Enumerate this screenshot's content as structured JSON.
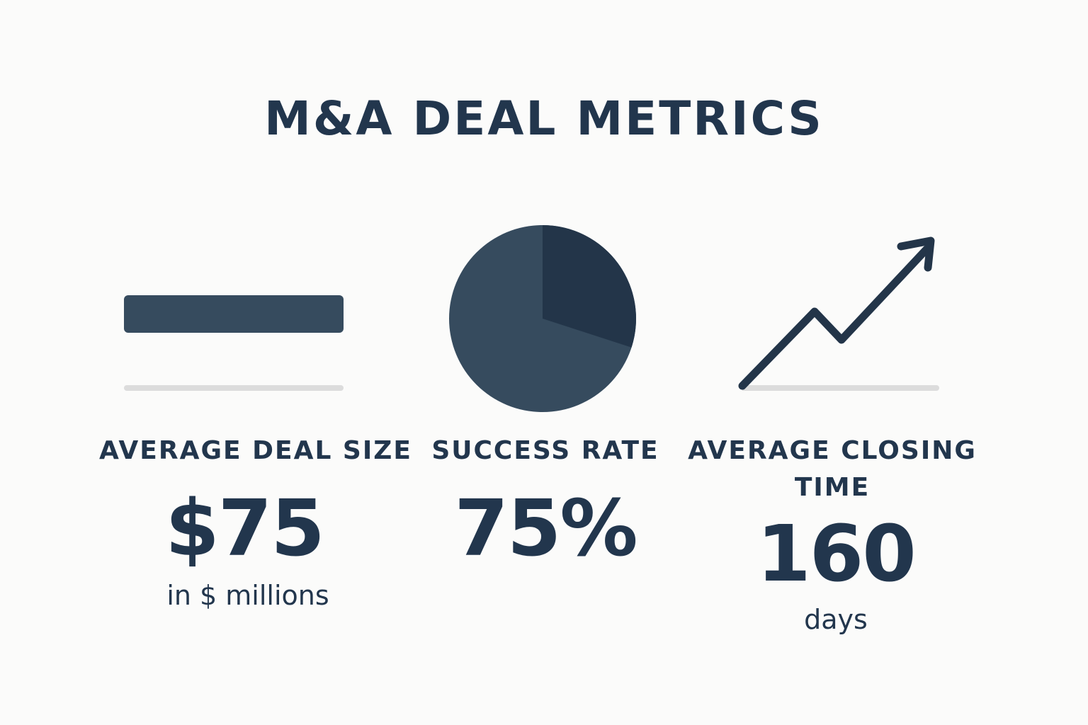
{
  "title": "M&A DEAL METRICS",
  "colors": {
    "text": "#22364d",
    "primary": "#364b5e",
    "dark": "#233549",
    "baseline": "#dcdcdc",
    "background": "#fbfbfa"
  },
  "metrics": [
    {
      "icon": "bar-icon",
      "label": "AVERAGE DEAL SIZE",
      "value": "$75",
      "unit": "in $ millions"
    },
    {
      "icon": "pie-icon",
      "label": "SUCCESS RATE",
      "value": "75%",
      "unit": ""
    },
    {
      "icon": "trend-up-arrow-icon",
      "label_line1": "AVERAGE CLOSING",
      "label_line2": "TIME",
      "value": "160",
      "unit": "days"
    }
  ],
  "chart_data": {
    "type": "pie",
    "slices": [
      {
        "value": 70
      },
      {
        "value": 30
      }
    ]
  }
}
